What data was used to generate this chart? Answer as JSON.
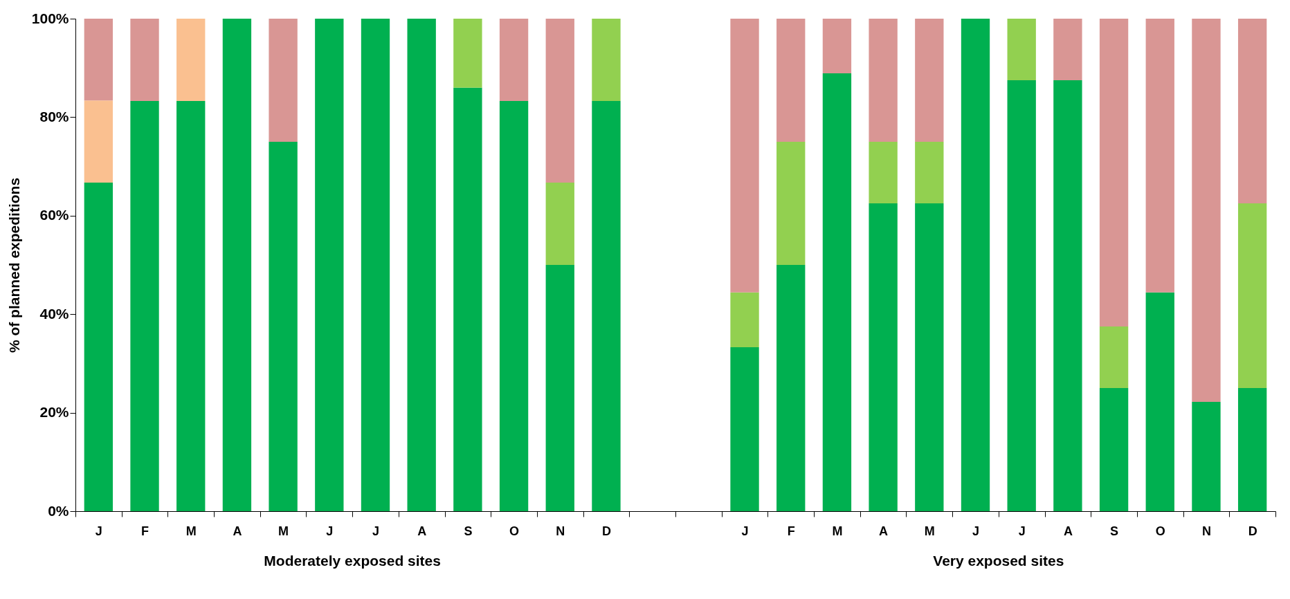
{
  "chart_data": {
    "type": "bar",
    "stacked": true,
    "ylabel": "% of planned expeditions",
    "categories": [
      "J",
      "F",
      "M",
      "A",
      "M",
      "J",
      "J",
      "A",
      "S",
      "O",
      "N",
      "D",
      null,
      null,
      "J",
      "F",
      "M",
      "A",
      "M",
      "J",
      "J",
      "A",
      "S",
      "O",
      "N",
      "D"
    ],
    "series": [
      {
        "color": "#00b050",
        "values": [
          66.7,
          83.3,
          83.3,
          100,
          75,
          100,
          100,
          100,
          86,
          83.3,
          50,
          83.3,
          null,
          null,
          33.3,
          50,
          88.9,
          62.5,
          62.5,
          100,
          87.5,
          87.5,
          25,
          44.4,
          22.2,
          25
        ]
      },
      {
        "color": "#92d050",
        "values": [
          0,
          0,
          0,
          0,
          0,
          0,
          0,
          0,
          14,
          0,
          16.7,
          16.7,
          null,
          null,
          11.1,
          25,
          0,
          12.5,
          12.5,
          0,
          12.5,
          0,
          12.5,
          0,
          0,
          37.5
        ]
      },
      {
        "color": "#fac090",
        "values": [
          16.7,
          0,
          16.7,
          0,
          0,
          0,
          0,
          0,
          0,
          0,
          0,
          0,
          null,
          null,
          0,
          0,
          0,
          0,
          0,
          0,
          0,
          0,
          0,
          0,
          0,
          0
        ]
      },
      {
        "color": "#d99694",
        "values": [
          16.6,
          16.7,
          0,
          0,
          25,
          0,
          0,
          0,
          0,
          16.7,
          33.3,
          0,
          null,
          null,
          55.6,
          25,
          11.1,
          25,
          25,
          0,
          0,
          12.5,
          62.5,
          55.6,
          77.8,
          37.5
        ]
      }
    ],
    "ylim": [
      0,
      100
    ],
    "yticks": [
      {
        "value": 0,
        "label": "0%"
      },
      {
        "value": 20,
        "label": "20%"
      },
      {
        "value": 40,
        "label": "40%"
      },
      {
        "value": 60,
        "label": "60%"
      },
      {
        "value": 80,
        "label": "80%"
      },
      {
        "value": 100,
        "label": "100%"
      }
    ],
    "grid": false,
    "annotations": [
      "Moderately exposed sites",
      "Very exposed sites"
    ]
  }
}
